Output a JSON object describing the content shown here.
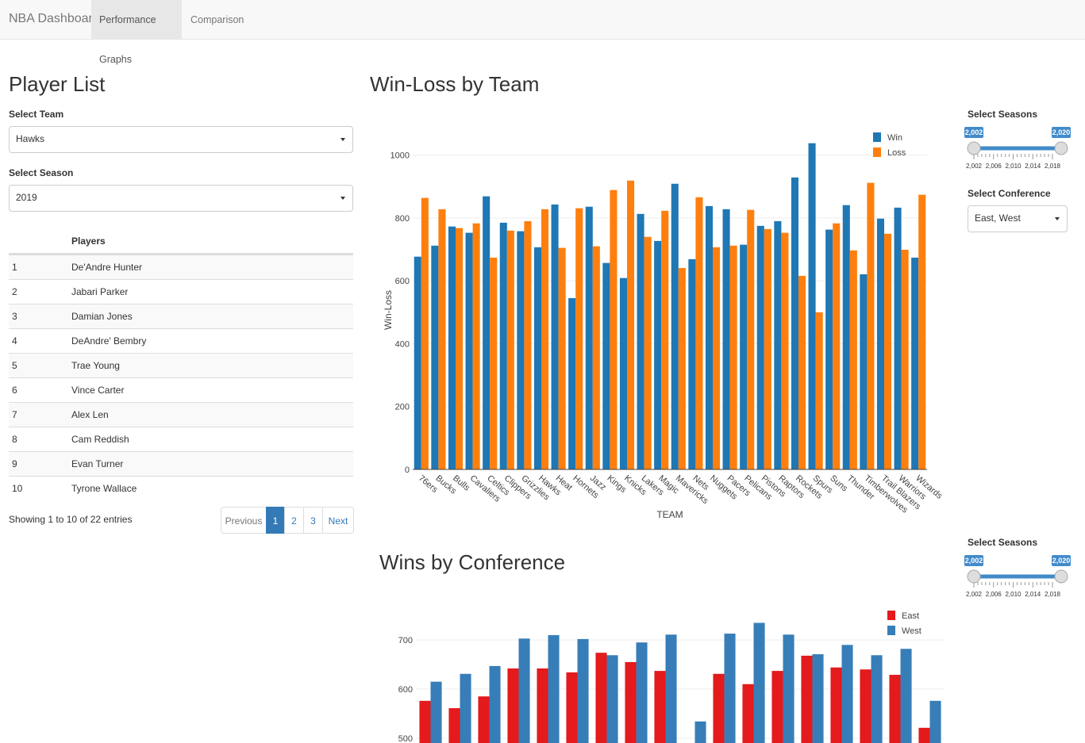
{
  "navbar": {
    "brand": "NBA Dashboard",
    "tabs": [
      "Performance Graphs",
      "Comparison"
    ]
  },
  "player_list": {
    "title": "Player List",
    "team_label": "Select Team",
    "team": "Hawks",
    "season_label": "Select Season",
    "season": "2019",
    "table": {
      "header": "Players",
      "rows": [
        [
          "1",
          "De'Andre Hunter"
        ],
        [
          "2",
          "Jabari Parker"
        ],
        [
          "3",
          "Damian Jones"
        ],
        [
          "4",
          "DeAndre' Bembry"
        ],
        [
          "5",
          "Trae Young"
        ],
        [
          "6",
          "Vince Carter"
        ],
        [
          "7",
          "Alex Len"
        ],
        [
          "8",
          "Cam Reddish"
        ],
        [
          "9",
          "Evan Turner"
        ],
        [
          "10",
          "Tyrone Wallace"
        ]
      ]
    },
    "info": "Showing 1 to 10 of 22 entries",
    "pagination": [
      "Previous",
      "1",
      "2",
      "3",
      "Next"
    ]
  },
  "season_sliders": [
    {
      "label": "Select Seasons",
      "from": "2,002",
      "to": "2,020",
      "ticks": [
        "2,002",
        "2,006",
        "2,010",
        "2,014",
        "2,018"
      ]
    },
    {
      "label": "Select Seasons",
      "from": "2,002",
      "to": "2,020",
      "ticks": [
        "2,002",
        "2,006",
        "2,010",
        "2,014",
        "2,018"
      ]
    }
  ],
  "conference": {
    "label": "Select Conference",
    "value": "East, West"
  },
  "chart_data": [
    {
      "type": "bar",
      "title": "Win-Loss by Team",
      "x_label": "TEAM",
      "y_label": "Win-Loss",
      "categories": [
        "76ers",
        "Bucks",
        "Bulls",
        "Cavaliers",
        "Celtics",
        "Clippers",
        "Grizzlies",
        "Hawks",
        "Heat",
        "Hornets",
        "Jazz",
        "Kings",
        "Knicks",
        "Lakers",
        "Magic",
        "Mavericks",
        "Nets",
        "Nuggets",
        "Pacers",
        "Pelicans",
        "Pistons",
        "Raptors",
        "Rockets",
        "Spurs",
        "Suns",
        "Thunder",
        "Timberwolves",
        "Trail Blazers",
        "Warriors",
        "Wizards"
      ],
      "series": [
        {
          "name": "Win",
          "color": "#1f77b4",
          "values": [
            677,
            712,
            773,
            753,
            869,
            785,
            758,
            707,
            843,
            545,
            836,
            657,
            609,
            813,
            727,
            909,
            669,
            838,
            828,
            715,
            775,
            790,
            929,
            1038,
            763,
            841,
            621,
            798,
            833,
            674
          ]
        },
        {
          "name": "Loss",
          "color": "#ff7f0e",
          "values": [
            864,
            828,
            768,
            783,
            674,
            760,
            790,
            828,
            705,
            831,
            710,
            889,
            919,
            740,
            823,
            641,
            866,
            707,
            712,
            826,
            765,
            753,
            616,
            500,
            783,
            697,
            912,
            750,
            699,
            874
          ]
        }
      ],
      "ylim": [
        0,
        1090
      ],
      "yticks": [
        0,
        200,
        400,
        600,
        800,
        1000
      ],
      "grid": true,
      "legend": "top-right"
    },
    {
      "type": "bar",
      "title": "Wins by Conference",
      "categories": [
        null,
        null,
        null,
        null,
        null,
        null,
        null,
        null,
        null,
        null,
        null,
        null,
        null,
        null,
        null,
        null,
        null,
        null
      ],
      "series": [
        {
          "name": "East",
          "color": "#e41a1c",
          "values": [
            576,
            561,
            585,
            642,
            642,
            634,
            674,
            655,
            637,
            null,
            631,
            610,
            637,
            668,
            644,
            640,
            629,
            521
          ]
        },
        {
          "name": "West",
          "color": "#377eb8",
          "values": [
            615,
            631,
            647,
            703,
            710,
            702,
            669,
            695,
            711,
            534,
            713,
            735,
            711,
            671,
            690,
            669,
            682,
            576
          ]
        }
      ],
      "ylim": [
        490,
        760
      ],
      "yticks": [
        500,
        600,
        700
      ],
      "grid": true,
      "legend": "top-right"
    }
  ]
}
